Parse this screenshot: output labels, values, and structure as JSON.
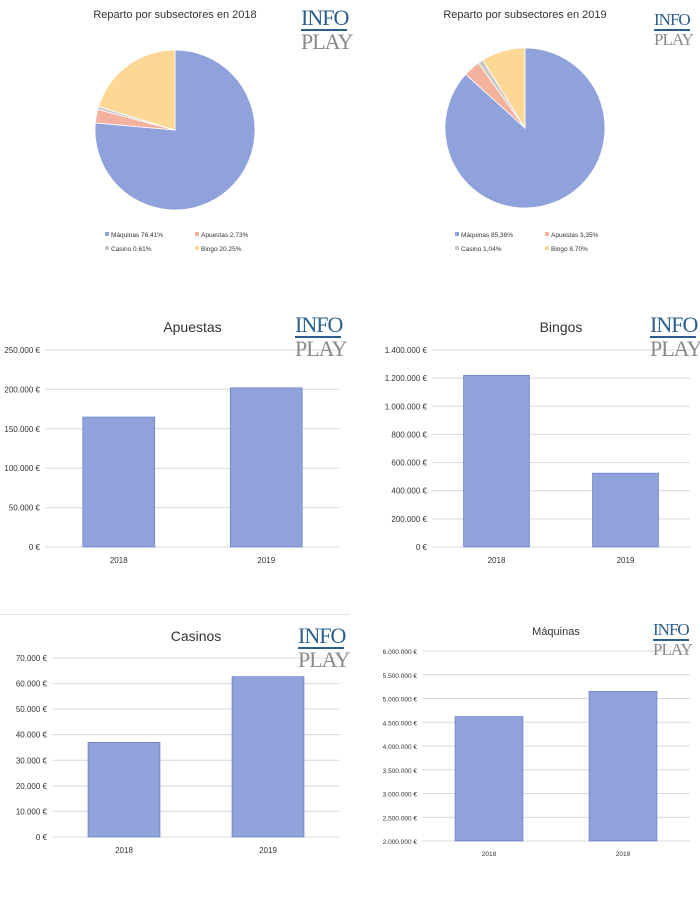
{
  "logos": [
    {
      "line1": "INFO",
      "line2": "PLAY"
    },
    {
      "line1": "INFO",
      "line2": "PLAY"
    },
    {
      "line1": "INFO",
      "line2": "PLAY"
    },
    {
      "line1": "INFO",
      "line2": "PLAY"
    },
    {
      "line1": "INFO",
      "line2": "PLAY"
    },
    {
      "line1": "INFO",
      "line2": "PLAY"
    }
  ],
  "colors": {
    "maquinas": "#8fa2dc",
    "apuestas": "#f4b19e",
    "casino": "#c8c8c8",
    "bingo": "#fcd894",
    "bar": "#8fa2dc",
    "bar_stroke": "#5d76c2",
    "grid": "#d9d9d9"
  },
  "chart_data": [
    {
      "type": "pie",
      "title": "Reparto por subsectores en 2018",
      "slices": [
        {
          "label": "Máquinas 76.41%",
          "value": 76.41,
          "color": "#8fa2dc"
        },
        {
          "label": "Apuestas 2.73%",
          "value": 2.73,
          "color": "#f4b19e"
        },
        {
          "label": "Casino 0.61%",
          "value": 0.61,
          "color": "#c8c8c8"
        },
        {
          "label": "Bingo 20.25%",
          "value": 20.25,
          "color": "#fcd894"
        }
      ],
      "legend": "bottom"
    },
    {
      "type": "pie",
      "title": "Reparto por subsectores en 2019",
      "slices": [
        {
          "label": "Máquinas 85,38%",
          "value": 85.38,
          "color": "#8fa2dc"
        },
        {
          "label": "Apuestas 3,35%",
          "value": 3.35,
          "color": "#f4b19e"
        },
        {
          "label": "Casino 1,04%",
          "value": 1.04,
          "color": "#c8c8c8"
        },
        {
          "label": "Bingo 8,70%",
          "value": 8.7,
          "color": "#fcd894"
        }
      ],
      "legend": "bottom"
    },
    {
      "type": "bar",
      "title": "Apuestas",
      "categories": [
        "2018",
        "2019"
      ],
      "values": [
        165000,
        202000
      ],
      "ylim": [
        0,
        250000
      ],
      "yticks": [
        "0 €",
        "50.000 €",
        "100.000 €",
        "150.000 €",
        "200.000 €",
        "250.000 €"
      ],
      "grid": true
    },
    {
      "type": "bar",
      "title": "Bingos",
      "categories": [
        "2018",
        "2019"
      ],
      "values": [
        1220000,
        525000
      ],
      "ylim": [
        0,
        1400000
      ],
      "yticks": [
        "0 €",
        "200.000 €",
        "400.000 €",
        "600.000 €",
        "800.000 €",
        "1.000.000 €",
        "1.200.000 €",
        "1.400.000 €"
      ],
      "grid": true
    },
    {
      "type": "bar",
      "title": "Casinos",
      "categories": [
        "2018",
        "2019"
      ],
      "values": [
        37000,
        62700
      ],
      "ylim": [
        0,
        70000
      ],
      "yticks": [
        "0 €",
        "10.000 €",
        "20.000 €",
        "30.000 €",
        "40.000 €",
        "50.000 €",
        "60.000 €",
        "70.000 €"
      ],
      "grid": true
    },
    {
      "type": "bar",
      "title": "Máquinas",
      "categories": [
        "2018",
        "2019"
      ],
      "values": [
        4620000,
        5150000
      ],
      "ylim": [
        2000000,
        6000000
      ],
      "yticks": [
        "2.000.000 €",
        "2.500.000 €",
        "3.000.000 €",
        "3.500.000 €",
        "4.000.000 €",
        "4.500.000 €",
        "5.000.000 €",
        "5.500.000 €",
        "6.000.000 €"
      ],
      "grid": true
    }
  ]
}
